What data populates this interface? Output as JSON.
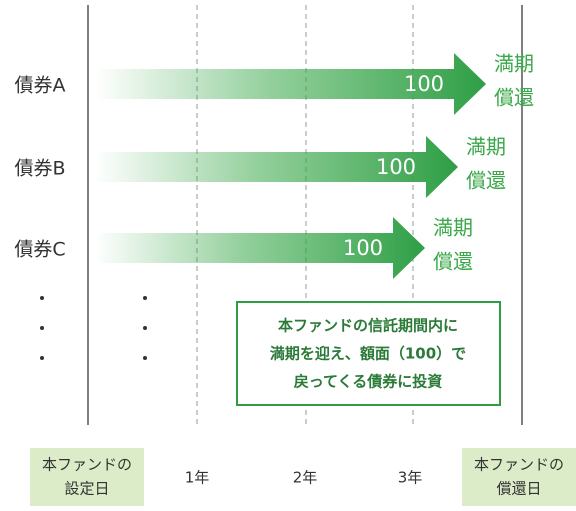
{
  "bonds": [
    {
      "label": "債券A",
      "value": 100,
      "maturity": [
        "満期",
        "償還"
      ]
    },
    {
      "label": "債券B",
      "value": 100,
      "maturity": [
        "満期",
        "償還"
      ]
    },
    {
      "label": "債券C",
      "value": 100,
      "maturity": [
        "満期",
        "償還"
      ]
    }
  ],
  "callout": [
    "本ファンドの信託期間内に",
    "満期を迎え、額面（100）で",
    "戻ってくる債券に投資"
  ],
  "timeline": {
    "start": [
      "本ファンドの",
      "設定日"
    ],
    "years": [
      "1年",
      "2年",
      "3年"
    ],
    "end": [
      "本ファンドの",
      "償還日"
    ]
  }
}
